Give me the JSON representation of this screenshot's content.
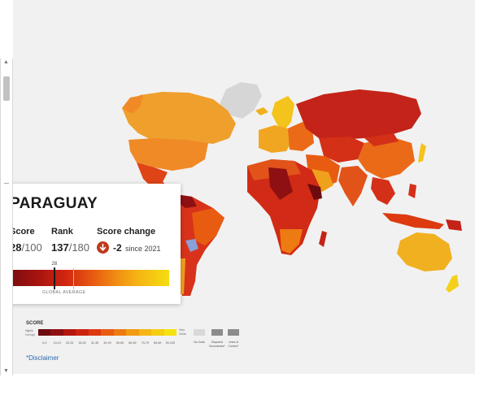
{
  "selected_country": {
    "name": "PARAGUAY",
    "score_label": "Score",
    "score_value": "28",
    "score_max": "/100",
    "rank_label": "Rank",
    "rank_value": "137",
    "rank_total": "/180",
    "change_label": "Score change",
    "change_value": "-2",
    "change_since": "since 2021",
    "marker_value": "28",
    "marker_score": 28,
    "global_average_label": "GLOBAL AVERAGE"
  },
  "legend": {
    "title": "SCORE",
    "highly_corrupt_label": "Highly Corrupt",
    "very_clean_label": "Very Clean",
    "ranges": [
      "0-9",
      "10-19",
      "20-25",
      "26-30",
      "31-35",
      "40-49",
      "50-59",
      "60-69",
      "70-79",
      "80-89",
      "90-100"
    ],
    "colors": [
      "#6d0b0f",
      "#8e1012",
      "#b3180f",
      "#cc240f",
      "#dd3a10",
      "#e85c12",
      "#ee7a12",
      "#f29a13",
      "#f5b614",
      "#f6cd12",
      "#f4e311"
    ],
    "no_data_label": "No Data",
    "disputed_label": "Disputed Boundaries*",
    "lines_of_control_label": "Lines of Control*",
    "no_data_color": "#d8d8d8",
    "disputed_color": "#8c8c8c"
  },
  "disclaimer": {
    "marker": "*",
    "link_text": "Disclaimer"
  },
  "icons": {
    "score_change": "arrow-down-circle-icon",
    "scroll_up": "scroll-up-arrow-icon",
    "scroll_down": "scroll-down-arrow-icon"
  }
}
